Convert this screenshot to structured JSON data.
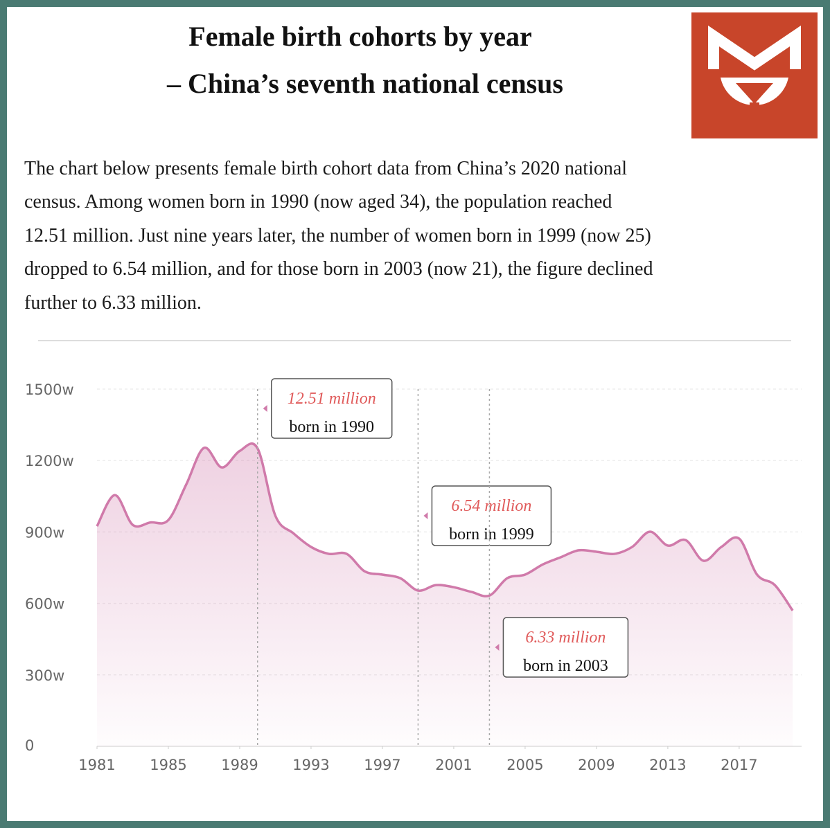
{
  "header": {
    "title_lines": [
      "Female birth cohorts by year",
      "– China’s seventh national census"
    ]
  },
  "paragraph_lines": [
    "The chart below presents female birth cohort data from China’s 2020 national",
    "census. Among women born in 1990 (now aged 34), the population reached",
    "12.51 million. Just nine years later, the number of women born in 1999 (now 25)",
    "dropped to 6.54 million, and for those born in 2003 (now 21), the figure declined",
    "further to 6.33 million."
  ],
  "chart_data": {
    "type": "area",
    "x": [
      1981,
      1982,
      1983,
      1984,
      1985,
      1986,
      1987,
      1988,
      1989,
      1990,
      1991,
      1992,
      1993,
      1994,
      1995,
      1996,
      1997,
      1998,
      1999,
      2000,
      2001,
      2002,
      2003,
      2004,
      2005,
      2006,
      2007,
      2008,
      2009,
      2010,
      2011,
      2012,
      2013,
      2014,
      2015,
      2016,
      2017,
      2018,
      2019,
      2020
    ],
    "series": [
      {
        "color": "#d07aaa",
        "values": [
          924,
          1055,
          930,
          940,
          950,
          1099,
          1253,
          1171,
          1240,
          1251,
          968,
          895,
          837,
          808,
          808,
          735,
          721,
          706,
          654,
          677,
          668,
          648,
          633,
          706,
          721,
          764,
          794,
          823,
          817,
          808,
          837,
          901,
          843,
          866,
          779,
          837,
          872,
          721,
          677,
          570
        ]
      }
    ],
    "xlim": [
      1981,
      2020.5
    ],
    "xticks": [
      1981,
      1985,
      1989,
      1993,
      1997,
      2001,
      2005,
      2009,
      2013,
      2017
    ],
    "ylim": [
      0,
      1500
    ],
    "yticks": [
      0,
      {
        "value": 300,
        "label": "300w"
      },
      {
        "value": 600,
        "label": "600w"
      },
      {
        "value": 900,
        "label": "900w"
      },
      {
        "value": 1200,
        "label": "1200w"
      },
      {
        "value": 1500,
        "label": "1500w"
      }
    ],
    "grid": true,
    "annotations": [
      {
        "x": 1990,
        "label": "12.51 million",
        "text": "born in 1990"
      },
      {
        "x": 1999,
        "label": "6.54 million",
        "text": "born in 1999"
      },
      {
        "x": 2003,
        "label": "6.33  million",
        "text": "born in 2003"
      }
    ]
  }
}
